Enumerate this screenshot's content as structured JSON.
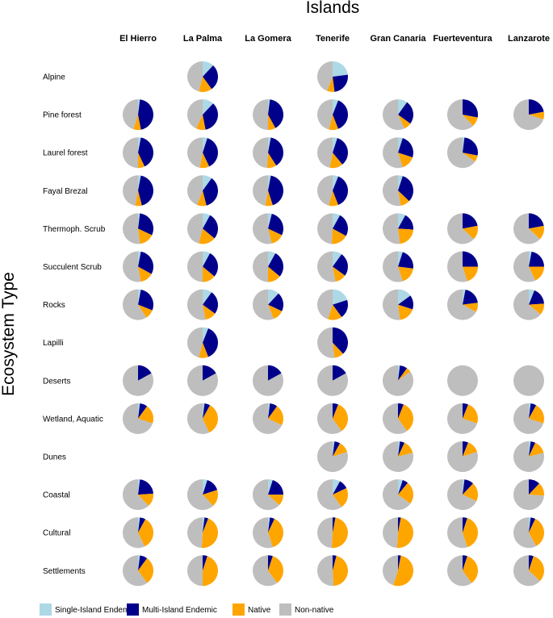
{
  "chart_data": {
    "type": "pie",
    "title": "Islands",
    "ylabel": "Ecosystem Type",
    "columns": [
      "El Hierro",
      "La Palma",
      "La Gomera",
      "Tenerife",
      "Gran Canaria",
      "Fuerteventura",
      "Lanzarote"
    ],
    "rows": [
      "Alpine",
      "Pine forest",
      "Laurel forest",
      "Fayal Brezal",
      "Thermoph. Scrub",
      "Succulent Scrub",
      "Rocks",
      "Lapilli",
      "Deserts",
      "Wetland, Aquatic",
      "Dunes",
      "Coastal",
      "Cultural",
      "Settlements"
    ],
    "categories": [
      "Single-Island Endemic",
      "Multi-Island Endemic",
      "Native",
      "Non-native"
    ],
    "colors": {
      "Single-Island Endemic": "#add8e6",
      "Multi-Island Endemic": "#00008b",
      "Native": "#ffa500",
      "Non-native": "#bebebe"
    },
    "series": [
      {
        "name": "Alpine",
        "values": [
          null,
          [
            0.12,
            0.28,
            0.14,
            0.46
          ],
          null,
          [
            0.23,
            0.25,
            0.08,
            0.44
          ],
          null,
          null,
          null
        ]
      },
      {
        "name": "Pine forest",
        "values": [
          [
            0.02,
            0.45,
            0.08,
            0.45
          ],
          [
            0.12,
            0.35,
            0.1,
            0.43
          ],
          [
            0.02,
            0.4,
            0.08,
            0.5
          ],
          [
            0.06,
            0.38,
            0.1,
            0.46
          ],
          [
            0.1,
            0.25,
            0.08,
            0.57
          ],
          [
            0.0,
            0.28,
            0.1,
            0.62
          ],
          [
            0.0,
            0.22,
            0.08,
            0.7
          ]
        ]
      },
      {
        "name": "Laurel forest",
        "values": [
          [
            0.03,
            0.4,
            0.07,
            0.5
          ],
          [
            0.05,
            0.38,
            0.1,
            0.47
          ],
          [
            0.03,
            0.38,
            0.1,
            0.49
          ],
          [
            0.05,
            0.34,
            0.14,
            0.47
          ],
          [
            0.05,
            0.25,
            0.15,
            0.55
          ],
          [
            0.02,
            0.26,
            0.07,
            0.65
          ],
          null
        ]
      },
      {
        "name": "Fayal Brezal",
        "values": [
          [
            0.03,
            0.43,
            0.07,
            0.47
          ],
          [
            0.1,
            0.36,
            0.1,
            0.44
          ],
          [
            0.03,
            0.42,
            0.08,
            0.47
          ],
          [
            0.06,
            0.38,
            0.1,
            0.46
          ],
          [
            0.05,
            0.32,
            0.1,
            0.53
          ],
          null,
          null
        ]
      },
      {
        "name": "Thermoph. Scrub",
        "values": [
          [
            0.02,
            0.3,
            0.16,
            0.52
          ],
          [
            0.08,
            0.28,
            0.18,
            0.46
          ],
          [
            0.04,
            0.28,
            0.14,
            0.54
          ],
          [
            0.08,
            0.25,
            0.18,
            0.49
          ],
          [
            0.08,
            0.18,
            0.22,
            0.52
          ],
          [
            0.0,
            0.22,
            0.15,
            0.63
          ],
          [
            0.0,
            0.22,
            0.15,
            0.63
          ]
        ]
      },
      {
        "name": "Succulent Scrub",
        "values": [
          [
            0.03,
            0.3,
            0.14,
            0.53
          ],
          [
            0.08,
            0.28,
            0.14,
            0.5
          ],
          [
            0.08,
            0.28,
            0.14,
            0.5
          ],
          [
            0.1,
            0.25,
            0.12,
            0.53
          ],
          [
            0.05,
            0.22,
            0.18,
            0.55
          ],
          [
            0.0,
            0.25,
            0.2,
            0.55
          ],
          [
            0.03,
            0.22,
            0.18,
            0.57
          ]
        ]
      },
      {
        "name": "Rocks",
        "values": [
          [
            0.03,
            0.28,
            0.1,
            0.59
          ],
          [
            0.1,
            0.25,
            0.12,
            0.53
          ],
          [
            0.12,
            0.2,
            0.12,
            0.56
          ],
          [
            0.2,
            0.2,
            0.15,
            0.45
          ],
          [
            0.15,
            0.15,
            0.18,
            0.52
          ],
          [
            0.03,
            0.2,
            0.1,
            0.67
          ],
          [
            0.06,
            0.18,
            0.12,
            0.64
          ]
        ]
      },
      {
        "name": "Lapilli",
        "values": [
          null,
          [
            0.06,
            0.38,
            0.1,
            0.46
          ],
          null,
          [
            0.0,
            0.38,
            0.1,
            0.52
          ],
          null,
          null,
          null
        ]
      },
      {
        "name": "Deserts",
        "values": [
          [
            0.0,
            0.17,
            0.0,
            0.83
          ],
          [
            0.0,
            0.17,
            0.0,
            0.83
          ],
          [
            0.0,
            0.17,
            0.0,
            0.83
          ],
          [
            0.0,
            0.17,
            0.0,
            0.83
          ],
          [
            0.02,
            0.08,
            0.05,
            0.85
          ],
          [
            0.0,
            0.0,
            0.0,
            1.0
          ],
          [
            0.0,
            0.0,
            0.0,
            1.0
          ]
        ]
      },
      {
        "name": "Wetland, Aquatic",
        "values": [
          [
            0.02,
            0.08,
            0.2,
            0.7
          ],
          [
            0.02,
            0.06,
            0.35,
            0.57
          ],
          [
            0.02,
            0.08,
            0.22,
            0.68
          ],
          [
            0.0,
            0.06,
            0.34,
            0.6
          ],
          [
            0.0,
            0.06,
            0.34,
            0.6
          ],
          [
            0.0,
            0.06,
            0.24,
            0.7
          ],
          [
            0.02,
            0.06,
            0.22,
            0.7
          ]
        ]
      },
      {
        "name": "Dunes",
        "values": [
          null,
          null,
          null,
          [
            0.02,
            0.06,
            0.12,
            0.8
          ],
          [
            0.02,
            0.05,
            0.14,
            0.79
          ],
          [
            0.0,
            0.06,
            0.14,
            0.8
          ],
          [
            0.02,
            0.05,
            0.14,
            0.79
          ]
        ]
      },
      {
        "name": "Coastal",
        "values": [
          [
            0.02,
            0.22,
            0.14,
            0.62
          ],
          [
            0.05,
            0.15,
            0.18,
            0.62
          ],
          [
            0.05,
            0.2,
            0.12,
            0.63
          ],
          [
            0.08,
            0.1,
            0.22,
            0.6
          ],
          [
            0.05,
            0.06,
            0.24,
            0.65
          ],
          [
            0.02,
            0.1,
            0.2,
            0.68
          ],
          [
            0.0,
            0.12,
            0.14,
            0.74
          ]
        ]
      },
      {
        "name": "Cultural",
        "values": [
          [
            0.02,
            0.06,
            0.35,
            0.57
          ],
          [
            0.02,
            0.04,
            0.45,
            0.49
          ],
          [
            0.02,
            0.05,
            0.38,
            0.55
          ],
          [
            0.0,
            0.03,
            0.48,
            0.49
          ],
          [
            0.0,
            0.03,
            0.48,
            0.49
          ],
          [
            0.0,
            0.05,
            0.4,
            0.55
          ],
          [
            0.02,
            0.05,
            0.35,
            0.58
          ]
        ]
      },
      {
        "name": "Settlements",
        "values": [
          [
            0.02,
            0.08,
            0.3,
            0.6
          ],
          [
            0.0,
            0.05,
            0.45,
            0.5
          ],
          [
            0.0,
            0.05,
            0.35,
            0.6
          ],
          [
            0.0,
            0.04,
            0.45,
            0.51
          ],
          [
            0.0,
            0.03,
            0.52,
            0.45
          ],
          [
            0.0,
            0.05,
            0.35,
            0.6
          ],
          [
            0.0,
            0.05,
            0.32,
            0.63
          ]
        ]
      }
    ]
  }
}
